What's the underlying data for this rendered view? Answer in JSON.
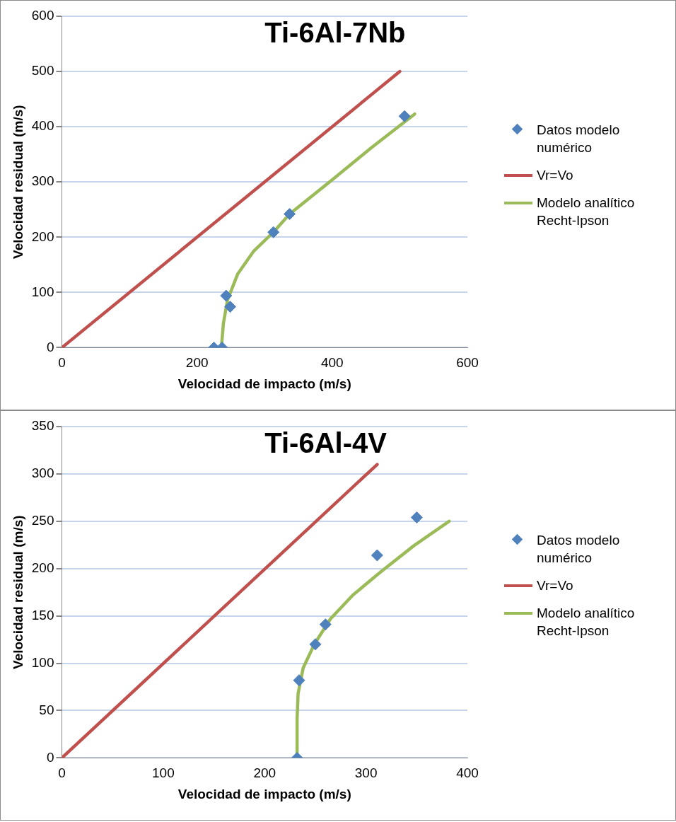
{
  "chart_data": [
    {
      "type": "scatter",
      "title": "Ti-6Al-7Nb",
      "xlabel": "Velocidad de impacto (m/s)",
      "ylabel": "Velocidad residual (m/s)",
      "xlim": [
        0,
        600
      ],
      "xticks": [
        0,
        200,
        400,
        600
      ],
      "ylim": [
        0,
        600
      ],
      "yticks": [
        0,
        100,
        200,
        300,
        400,
        500,
        600
      ],
      "grid": "y",
      "legend": "right",
      "series": [
        {
          "name": "Datos modelo numérico",
          "type": "scatter",
          "color": "#4f81bd",
          "marker": "diamond",
          "x": [
            225,
            237,
            243,
            249,
            313,
            337,
            507
          ],
          "values": [
            0,
            0,
            94,
            74,
            209,
            242,
            419
          ]
        },
        {
          "name": "Vr=Vo",
          "type": "line",
          "color": "#c0504d",
          "marker": "none",
          "x": [
            0,
            500
          ],
          "values": [
            0,
            500
          ]
        },
        {
          "name": "Modelo analítico Recht-Ipson",
          "type": "line",
          "color": "#9bbb59",
          "marker": "none",
          "x": [
            236,
            239,
            245,
            260,
            284,
            313,
            337,
            398,
            459,
            522
          ],
          "values": [
            0,
            44,
            86,
            133,
            175,
            209,
            242,
            302,
            363,
            423
          ]
        }
      ]
    },
    {
      "type": "scatter",
      "title": "Ti-6Al-4V",
      "xlabel": "Velocidad de impacto (m/s)",
      "ylabel": "Velocidad residual (m/s)",
      "xlim": [
        0,
        400
      ],
      "xticks": [
        0,
        100,
        200,
        300,
        400
      ],
      "ylim": [
        0,
        350
      ],
      "yticks": [
        0,
        50,
        100,
        150,
        200,
        250,
        300,
        350
      ],
      "grid": "y",
      "legend": "right",
      "series": [
        {
          "name": "Datos modelo numérico",
          "type": "scatter",
          "color": "#4f81bd",
          "marker": "diamond",
          "x": [
            232,
            234,
            250,
            260,
            311,
            350
          ],
          "values": [
            0,
            82,
            120,
            141,
            214,
            254
          ]
        },
        {
          "name": "Vr=Vo",
          "type": "line",
          "color": "#c0504d",
          "marker": "none",
          "x": [
            0,
            311
          ],
          "values": [
            0,
            310
          ]
        },
        {
          "name": "Modelo analítico Recht-Ipson",
          "type": "line",
          "color": "#9bbb59",
          "marker": "none",
          "x": [
            232,
            232,
            233,
            238,
            249,
            265,
            287,
            314,
            347,
            382
          ],
          "values": [
            0,
            41,
            68,
            95,
            120,
            147,
            172,
            196,
            224,
            250
          ]
        }
      ]
    }
  ]
}
